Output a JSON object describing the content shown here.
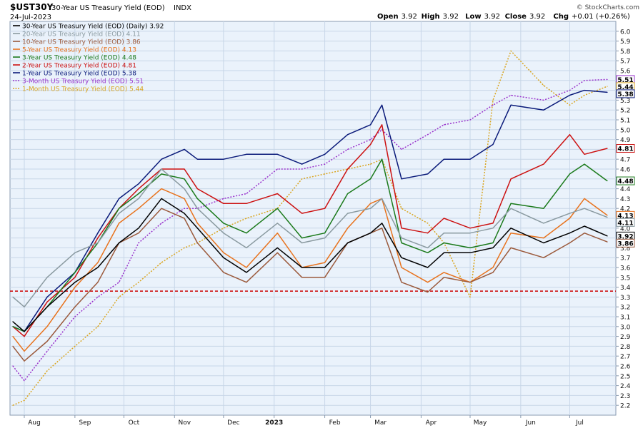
{
  "header": {
    "symbol": "$UST30Y",
    "name": "30-Year US Treasury Yield (EOD)",
    "exchange": "INDX",
    "date": "24-Jul-2023",
    "watermark": "© StockCharts.com",
    "ohlc": [
      {
        "label": "Open",
        "value": "3.92"
      },
      {
        "label": "High",
        "value": "3.92"
      },
      {
        "label": "Low",
        "value": "3.92"
      },
      {
        "label": "Close",
        "value": "3.92"
      },
      {
        "label": "Chg",
        "value": "+0.01 (+0.26%)"
      }
    ]
  },
  "chart_data": {
    "type": "line",
    "y_axis": {
      "position": "right",
      "min": 2.1,
      "max": 6.1,
      "ticks": [
        "2.2",
        "2.3",
        "2.4",
        "2.5",
        "2.6",
        "2.7",
        "2.8",
        "2.9",
        "3.0",
        "3.1",
        "3.2",
        "3.3",
        "3.4",
        "3.5",
        "3.6",
        "3.7",
        "3.8",
        "3.9",
        "4.0",
        "4.1",
        "4.2",
        "4.3",
        "4.4",
        "4.5",
        "4.6",
        "4.7",
        "4.8",
        "4.9",
        "5.0",
        "5.1",
        "5.2",
        "5.3",
        "5.4",
        "5.5",
        "5.6",
        "5.7",
        "5.8",
        "5.9",
        "6.0"
      ]
    },
    "x_axis": {
      "labels": [
        "Aug",
        "Sep",
        "Oct",
        "Nov",
        "Dec",
        "2023",
        "Feb",
        "Mar",
        "Apr",
        "May",
        "Jun",
        "Jul"
      ],
      "start": "2022-07-25",
      "end": "2023-07-24"
    },
    "reference_line": {
      "value": 3.36,
      "color": "#cc0000",
      "style": "dashed"
    },
    "grid": true,
    "legend": "top-left",
    "series": [
      {
        "name": "30-Year US Treasury Yield (EOD) (Daily)",
        "last": "3.92",
        "color": "#000000",
        "dash": false,
        "x": [
          "2022-07-25",
          "2022-08-01",
          "2022-08-15",
          "2022-09-01",
          "2022-09-15",
          "2022-09-28",
          "2022-10-10",
          "2022-10-24",
          "2022-11-07",
          "2022-11-15",
          "2022-12-01",
          "2022-12-15",
          "2023-01-03",
          "2023-01-18",
          "2023-02-01",
          "2023-02-15",
          "2023-03-01",
          "2023-03-08",
          "2023-03-20",
          "2023-04-05",
          "2023-04-15",
          "2023-05-01",
          "2023-05-15",
          "2023-05-26",
          "2023-06-15",
          "2023-07-01",
          "2023-07-10",
          "2023-07-24"
        ],
        "values": [
          3.05,
          2.95,
          3.2,
          3.45,
          3.6,
          3.85,
          4.0,
          4.3,
          4.15,
          4.0,
          3.7,
          3.55,
          3.8,
          3.6,
          3.6,
          3.85,
          3.95,
          4.05,
          3.7,
          3.6,
          3.75,
          3.75,
          3.8,
          4.0,
          3.85,
          3.95,
          4.02,
          3.92
        ]
      },
      {
        "name": "20-Year US Treasury Yield (EOD)",
        "last": "4.11",
        "color": "#8a9aa0",
        "dash": false,
        "x": [
          "2022-07-25",
          "2022-08-01",
          "2022-08-15",
          "2022-09-01",
          "2022-09-15",
          "2022-09-28",
          "2022-10-10",
          "2022-10-24",
          "2022-11-07",
          "2022-11-15",
          "2022-12-01",
          "2022-12-15",
          "2023-01-03",
          "2023-01-18",
          "2023-02-01",
          "2023-02-15",
          "2023-03-01",
          "2023-03-08",
          "2023-03-20",
          "2023-04-05",
          "2023-04-15",
          "2023-05-01",
          "2023-05-15",
          "2023-05-26",
          "2023-06-15",
          "2023-07-01",
          "2023-07-10",
          "2023-07-24"
        ],
        "values": [
          3.3,
          3.2,
          3.5,
          3.75,
          3.85,
          4.15,
          4.3,
          4.6,
          4.4,
          4.2,
          3.95,
          3.8,
          4.05,
          3.85,
          3.9,
          4.15,
          4.2,
          4.3,
          3.9,
          3.8,
          3.95,
          3.95,
          4.0,
          4.2,
          4.05,
          4.15,
          4.2,
          4.11
        ]
      },
      {
        "name": "10-Year US Treasury Yield (EOD)",
        "last": "3.86",
        "color": "#9b5a3c",
        "dash": false,
        "x": [
          "2022-07-25",
          "2022-08-01",
          "2022-08-15",
          "2022-09-01",
          "2022-09-15",
          "2022-09-28",
          "2022-10-10",
          "2022-10-24",
          "2022-11-07",
          "2022-11-15",
          "2022-12-01",
          "2022-12-15",
          "2023-01-03",
          "2023-01-18",
          "2023-02-01",
          "2023-02-15",
          "2023-03-01",
          "2023-03-08",
          "2023-03-20",
          "2023-04-05",
          "2023-04-15",
          "2023-05-01",
          "2023-05-15",
          "2023-05-26",
          "2023-06-15",
          "2023-07-01",
          "2023-07-10",
          "2023-07-24"
        ],
        "values": [
          2.8,
          2.65,
          2.85,
          3.2,
          3.45,
          3.85,
          3.95,
          4.2,
          4.1,
          3.85,
          3.55,
          3.45,
          3.75,
          3.5,
          3.5,
          3.85,
          3.95,
          4.0,
          3.45,
          3.35,
          3.5,
          3.45,
          3.55,
          3.8,
          3.7,
          3.85,
          3.95,
          3.86
        ]
      },
      {
        "name": "5-Year US Treasury Yield (EOD)",
        "last": "4.13",
        "color": "#e8731e",
        "dash": false,
        "x": [
          "2022-07-25",
          "2022-08-01",
          "2022-08-15",
          "2022-09-01",
          "2022-09-15",
          "2022-09-28",
          "2022-10-10",
          "2022-10-24",
          "2022-11-07",
          "2022-11-15",
          "2022-12-01",
          "2022-12-15",
          "2023-01-03",
          "2023-01-18",
          "2023-02-01",
          "2023-02-15",
          "2023-03-01",
          "2023-03-08",
          "2023-03-20",
          "2023-04-05",
          "2023-04-15",
          "2023-05-01",
          "2023-05-15",
          "2023-05-26",
          "2023-06-15",
          "2023-07-01",
          "2023-07-10",
          "2023-07-24"
        ],
        "values": [
          2.9,
          2.75,
          3.0,
          3.4,
          3.65,
          4.05,
          4.2,
          4.4,
          4.3,
          4.05,
          3.75,
          3.6,
          3.95,
          3.6,
          3.65,
          4.0,
          4.25,
          4.3,
          3.6,
          3.45,
          3.55,
          3.45,
          3.6,
          3.95,
          3.9,
          4.1,
          4.3,
          4.13
        ]
      },
      {
        "name": "3-Year US Treasury Yield (EOD)",
        "last": "4.48",
        "color": "#1b7a1b",
        "dash": false,
        "x": [
          "2022-07-25",
          "2022-08-01",
          "2022-08-15",
          "2022-09-01",
          "2022-09-15",
          "2022-09-28",
          "2022-10-10",
          "2022-10-24",
          "2022-11-07",
          "2022-11-15",
          "2022-12-01",
          "2022-12-15",
          "2023-01-03",
          "2023-01-18",
          "2023-02-01",
          "2023-02-15",
          "2023-03-01",
          "2023-03-08",
          "2023-03-20",
          "2023-04-05",
          "2023-04-15",
          "2023-05-01",
          "2023-05-15",
          "2023-05-26",
          "2023-06-15",
          "2023-07-01",
          "2023-07-10",
          "2023-07-24"
        ],
        "values": [
          3.0,
          2.95,
          3.2,
          3.55,
          3.85,
          4.2,
          4.35,
          4.55,
          4.5,
          4.3,
          4.05,
          3.95,
          4.2,
          3.9,
          3.95,
          4.35,
          4.5,
          4.7,
          3.85,
          3.75,
          3.85,
          3.8,
          3.85,
          4.25,
          4.2,
          4.55,
          4.65,
          4.48
        ]
      },
      {
        "name": "2-Year US Treasury Yield (EOD)",
        "last": "4.81",
        "color": "#cc1111",
        "dash": false,
        "x": [
          "2022-07-25",
          "2022-08-01",
          "2022-08-15",
          "2022-09-01",
          "2022-09-15",
          "2022-09-28",
          "2022-10-10",
          "2022-10-24",
          "2022-11-07",
          "2022-11-15",
          "2022-12-01",
          "2022-12-15",
          "2023-01-03",
          "2023-01-18",
          "2023-02-01",
          "2023-02-15",
          "2023-03-01",
          "2023-03-08",
          "2023-03-20",
          "2023-04-05",
          "2023-04-15",
          "2023-05-01",
          "2023-05-15",
          "2023-05-26",
          "2023-06-15",
          "2023-07-01",
          "2023-07-10",
          "2023-07-24"
        ],
        "values": [
          3.0,
          2.9,
          3.25,
          3.5,
          3.9,
          4.2,
          4.4,
          4.6,
          4.6,
          4.4,
          4.25,
          4.25,
          4.35,
          4.15,
          4.2,
          4.6,
          4.85,
          5.05,
          4.0,
          3.95,
          4.1,
          4.0,
          4.05,
          4.5,
          4.65,
          4.95,
          4.75,
          4.81
        ]
      },
      {
        "name": "1-Year US Treasury Yield (EOD)",
        "last": "5.38",
        "color": "#0a1a7a",
        "dash": false,
        "x": [
          "2022-07-25",
          "2022-08-01",
          "2022-08-15",
          "2022-09-01",
          "2022-09-15",
          "2022-09-28",
          "2022-10-10",
          "2022-10-24",
          "2022-11-07",
          "2022-11-15",
          "2022-12-01",
          "2022-12-15",
          "2023-01-03",
          "2023-01-18",
          "2023-02-01",
          "2023-02-15",
          "2023-03-01",
          "2023-03-08",
          "2023-03-20",
          "2023-04-05",
          "2023-04-15",
          "2023-05-01",
          "2023-05-15",
          "2023-05-26",
          "2023-06-15",
          "2023-07-01",
          "2023-07-10",
          "2023-07-24"
        ],
        "values": [
          3.0,
          2.95,
          3.3,
          3.55,
          3.95,
          4.3,
          4.45,
          4.7,
          4.8,
          4.7,
          4.7,
          4.75,
          4.75,
          4.65,
          4.75,
          4.95,
          5.05,
          5.25,
          4.5,
          4.55,
          4.7,
          4.7,
          4.85,
          5.25,
          5.2,
          5.35,
          5.4,
          5.38
        ]
      },
      {
        "name": "3-Month US Treasury Yield (EOD)",
        "last": "5.51",
        "color": "#9933cc",
        "dash": true,
        "x": [
          "2022-07-25",
          "2022-08-01",
          "2022-08-15",
          "2022-09-01",
          "2022-09-15",
          "2022-09-28",
          "2022-10-10",
          "2022-10-24",
          "2022-11-07",
          "2022-11-15",
          "2022-12-01",
          "2022-12-15",
          "2023-01-03",
          "2023-01-18",
          "2023-02-01",
          "2023-02-15",
          "2023-03-01",
          "2023-03-08",
          "2023-03-20",
          "2023-04-05",
          "2023-04-15",
          "2023-05-01",
          "2023-05-15",
          "2023-05-26",
          "2023-06-15",
          "2023-07-01",
          "2023-07-10",
          "2023-07-24"
        ],
        "values": [
          2.6,
          2.45,
          2.75,
          3.1,
          3.3,
          3.45,
          3.85,
          4.05,
          4.2,
          4.2,
          4.3,
          4.35,
          4.6,
          4.6,
          4.65,
          4.8,
          4.9,
          5.0,
          4.8,
          4.95,
          5.05,
          5.1,
          5.25,
          5.35,
          5.3,
          5.4,
          5.5,
          5.51
        ]
      },
      {
        "name": "1-Month US Treasury Yield (EOD)",
        "last": "5.44",
        "color": "#d9a520",
        "dash": true,
        "x": [
          "2022-07-25",
          "2022-08-01",
          "2022-08-15",
          "2022-09-01",
          "2022-09-15",
          "2022-09-28",
          "2022-10-10",
          "2022-10-24",
          "2022-11-07",
          "2022-11-15",
          "2022-12-01",
          "2022-12-15",
          "2023-01-03",
          "2023-01-18",
          "2023-02-01",
          "2023-02-15",
          "2023-03-01",
          "2023-03-08",
          "2023-03-20",
          "2023-04-05",
          "2023-04-15",
          "2023-05-01",
          "2023-05-15",
          "2023-05-26",
          "2023-06-15",
          "2023-07-01",
          "2023-07-10",
          "2023-07-24"
        ],
        "values": [
          2.2,
          2.25,
          2.55,
          2.8,
          3.0,
          3.3,
          3.45,
          3.65,
          3.8,
          3.85,
          4.0,
          4.1,
          4.2,
          4.5,
          4.55,
          4.6,
          4.65,
          4.7,
          4.2,
          4.05,
          3.85,
          3.3,
          5.3,
          5.8,
          5.45,
          5.25,
          5.35,
          5.44
        ]
      }
    ]
  }
}
